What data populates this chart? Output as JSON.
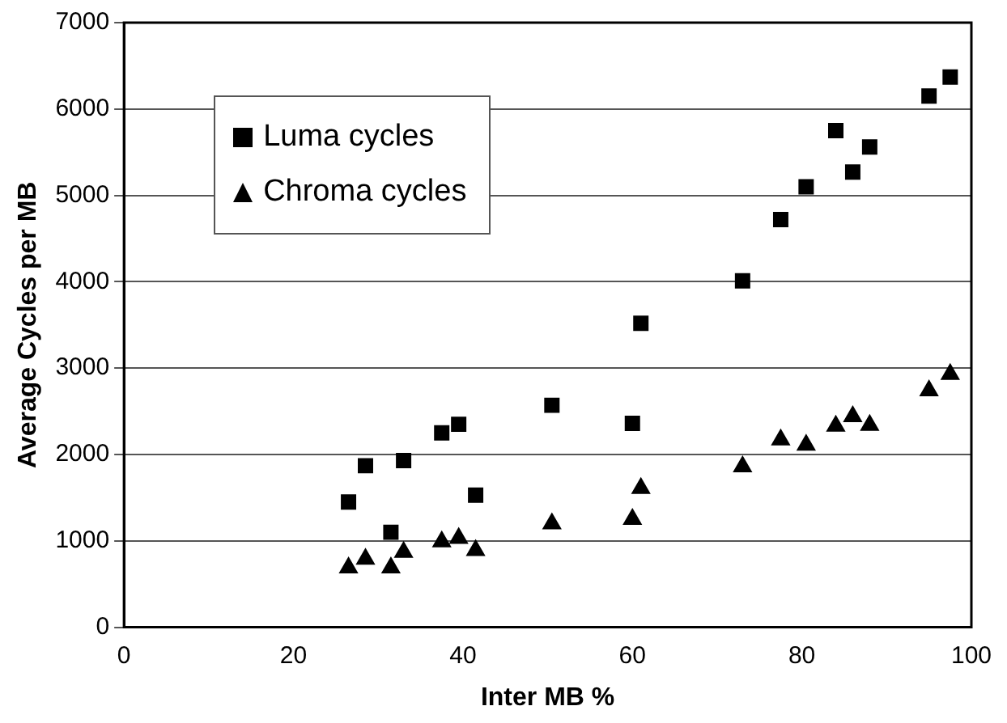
{
  "chart_data": {
    "type": "scatter",
    "xlabel": "Inter MB %",
    "ylabel": "Average Cycles per MB",
    "xlim": [
      0,
      100
    ],
    "xticks": [
      0,
      20,
      40,
      60,
      80,
      100
    ],
    "ylim": [
      0,
      7000
    ],
    "yticks": [
      0,
      1000,
      2000,
      3000,
      4000,
      5000,
      6000,
      7000
    ],
    "grid": "y",
    "legend": "top left",
    "series": [
      {
        "name": "Luma cycles",
        "color": "#000000",
        "marker": "square",
        "x": [
          26.5,
          28.5,
          31.5,
          33,
          37.5,
          39.5,
          41.5,
          50.5,
          60,
          61,
          73,
          77.5,
          80.5,
          84,
          86,
          88,
          95,
          97.5
        ],
        "values": [
          1450,
          1870,
          1100,
          1930,
          2250,
          2350,
          1530,
          2570,
          2360,
          3520,
          4010,
          4720,
          5100,
          5750,
          5270,
          5560,
          6150,
          6370
        ]
      },
      {
        "name": "Chroma cycles",
        "color": "#000000",
        "marker": "triangle",
        "x": [
          26.5,
          28.5,
          31.5,
          33,
          37.5,
          39.5,
          41.5,
          50.5,
          60,
          61,
          73,
          77.5,
          80.5,
          84,
          86,
          88,
          95,
          97.5
        ],
        "values": [
          690,
          790,
          690,
          870,
          990,
          1030,
          890,
          1200,
          1250,
          1610,
          1860,
          2170,
          2110,
          2330,
          2440,
          2340,
          2740,
          2930
        ]
      }
    ]
  }
}
